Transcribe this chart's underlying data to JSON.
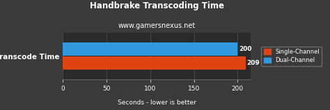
{
  "title": "Handbrake Transcoding Time",
  "subtitle": "www.gamersnexus.net",
  "xlabel": "Seconds - lower is better",
  "categories": [
    "Transcode Time"
  ],
  "dual_channel_values": [
    200
  ],
  "single_channel_values": [
    209
  ],
  "dual_channel_color": "#3399DD",
  "single_channel_color": "#DD4411",
  "background_color": "#3A3A3A",
  "plot_bg_color": "#2A2A2A",
  "text_color": "#FFFFFF",
  "grid_color": "#555555",
  "spine_color": "#777777",
  "xlim": [
    0,
    215
  ],
  "xticks": [
    0,
    50,
    100,
    150,
    200
  ],
  "bar_height": 0.38,
  "bar_gap": 0.02,
  "legend_labels": [
    "Single-Channel",
    "Dual-Channel"
  ],
  "title_fontsize": 8.5,
  "subtitle_fontsize": 7,
  "tick_fontsize": 6.5,
  "ylabel_fontsize": 7.5,
  "xlabel_fontsize": 6.5,
  "value_fontsize": 6.5,
  "legend_fontsize": 6
}
